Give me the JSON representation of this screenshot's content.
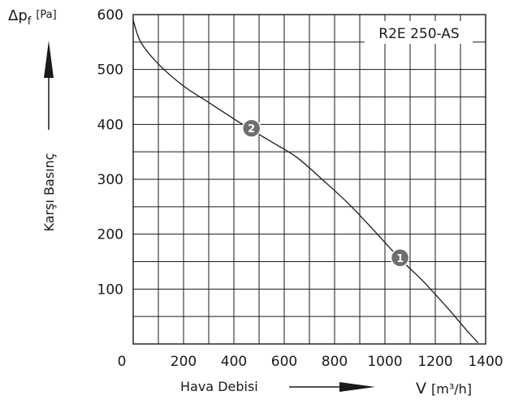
{
  "chart_data": {
    "type": "line",
    "title": "R2E 250-AS",
    "xlabel": "Hava Debisi",
    "x_unit_symbol": "V",
    "x_unit": "[m³/h]",
    "ylabel": "Karşı Basınç",
    "y_symbol": "Δp",
    "y_symbol_sub": "f",
    "y_unit": "[Pa]",
    "xlim": [
      0,
      1400
    ],
    "ylim": [
      0,
      600
    ],
    "x_ticks": [
      0,
      200,
      400,
      600,
      800,
      1000,
      1200,
      1400
    ],
    "y_ticks": [
      100,
      200,
      300,
      400,
      500,
      600
    ],
    "x_tick_labels": [
      "0",
      "200",
      "400",
      "600",
      "800",
      "1000",
      "1200",
      "1400"
    ],
    "y_tick_labels": [
      "100",
      "200",
      "300",
      "400",
      "500",
      "600"
    ],
    "grid": true,
    "grid_x_step": 100,
    "grid_y_step": 50,
    "series": [
      {
        "x": [
          0,
          30,
          100,
          200,
          300,
          400,
          470,
          550,
          650,
          750,
          850,
          950,
          1060,
          1150,
          1250,
          1300,
          1340,
          1370
        ],
        "y": [
          590,
          550,
          510,
          470,
          440,
          410,
          390,
          368,
          340,
          300,
          258,
          210,
          155,
          115,
          65,
          38,
          17,
          2
        ]
      }
    ],
    "annotations": [
      {
        "label": "1",
        "x": 1060,
        "y": 157
      },
      {
        "label": "2",
        "x": 470,
        "y": 393
      }
    ]
  },
  "colors": {
    "grid": "#1a1a1a",
    "curve": "#1a1a1a",
    "marker_fill": "#6e6e6e",
    "marker_stroke": "#ffffff"
  }
}
